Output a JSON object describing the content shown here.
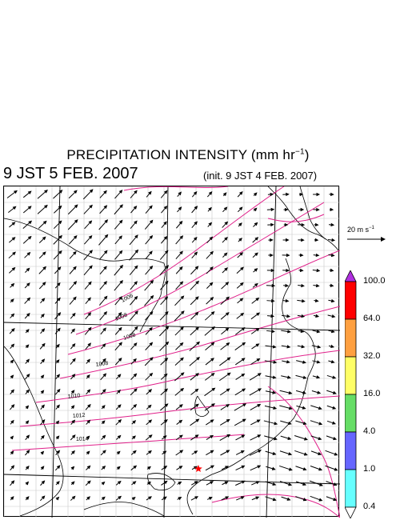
{
  "title": {
    "main": "PRECIPITATION INTENSITY (mm hr",
    "sup": "−1",
    "close": ")"
  },
  "valid_time": "9 JST 5 FEB. 2007",
  "init_time": "(init. 9 JST 4 FEB. 2007)",
  "wind_reference": {
    "label": "20 m s",
    "sup": "−1"
  },
  "colorbar": {
    "top_color": "#b030e0",
    "levels": [
      {
        "value": "100.0",
        "color": "#ff0000"
      },
      {
        "value": "64.0",
        "color": "#ffa040"
      },
      {
        "value": "32.0",
        "color": "#ffff66"
      },
      {
        "value": "16.0",
        "color": "#66dd66"
      },
      {
        "value": "4.0",
        "color": "#6666ff"
      },
      {
        "value": "1.0",
        "color": "#66ffff"
      },
      {
        "value": "0.4",
        "color": "#ffffff"
      }
    ]
  },
  "isobar_labels": [
    "1006",
    "1008",
    "1008",
    "1008",
    "1010",
    "1012",
    "1014"
  ],
  "isobar_color": "#e0208a",
  "grid_color": "#c8c8c8",
  "marker": {
    "icon": "star-icon",
    "color": "#ff0000"
  }
}
